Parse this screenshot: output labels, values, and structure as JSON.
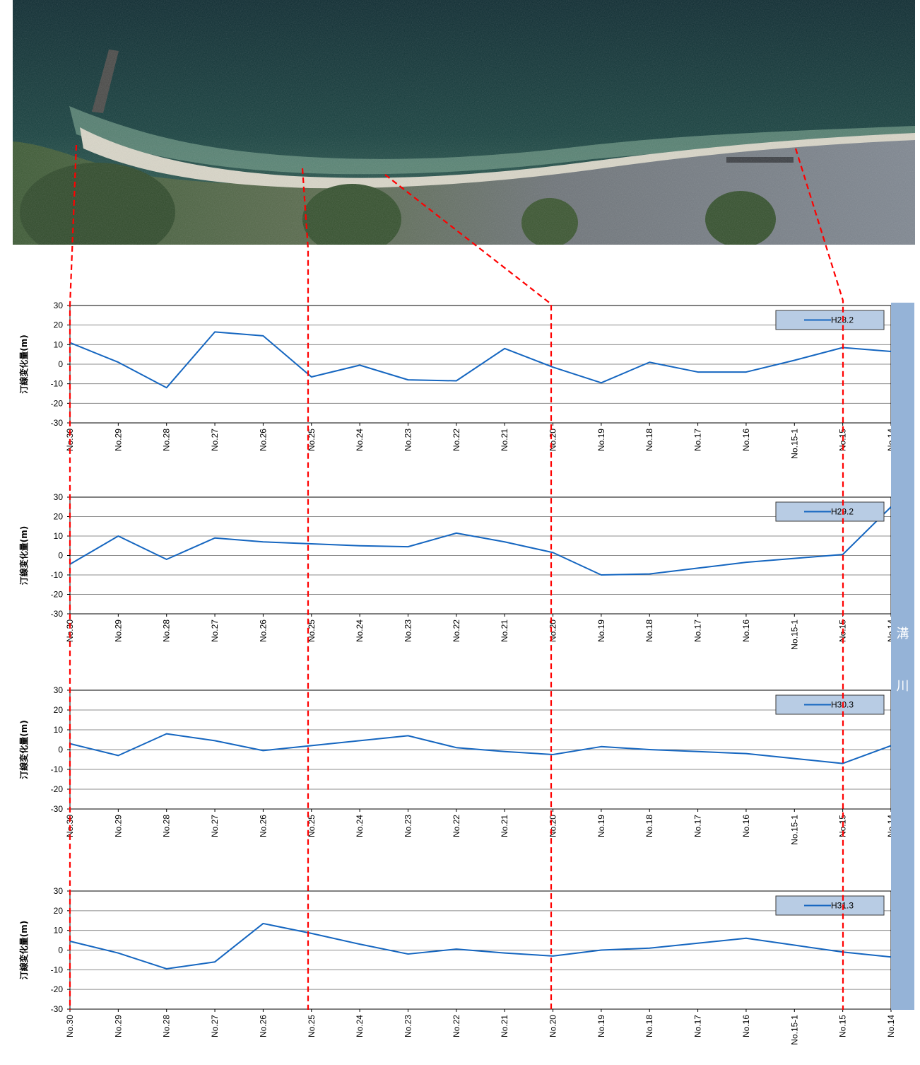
{
  "colors": {
    "series": "#1566c0",
    "grid": "#8c8c8c",
    "axis": "#000000",
    "guide": "#ff0000",
    "river_band": "#95b3d7",
    "legend_fill": "#b8cce4",
    "legend_border": "#3a3a3a"
  },
  "river_label": [
    "溝",
    "川"
  ],
  "chart_data": [
    {
      "type": "line",
      "ylabel": "汀線変化量(m)",
      "ylim": [
        -30,
        30
      ],
      "yticks": [
        30,
        20,
        10,
        0,
        -10,
        -20,
        -30
      ],
      "grid": true,
      "legend_position": "top-right",
      "categories": [
        "No.30",
        "No.29",
        "No.28",
        "No.27",
        "No.26",
        "No.25",
        "No.24",
        "No.23",
        "No.22",
        "No.21",
        "No.20",
        "No.19",
        "No.18",
        "No.17",
        "No.16",
        "No.15-1",
        "No.15",
        "No.14"
      ],
      "series": [
        {
          "name": "H28.2",
          "values": [
            11,
            1,
            -12,
            16.5,
            14.5,
            -6.5,
            -0.5,
            -8,
            -8.5,
            8,
            -1.5,
            -9.5,
            1,
            -4,
            -4,
            2,
            8.5,
            6.5
          ]
        }
      ]
    },
    {
      "type": "line",
      "ylabel": "汀線変化量(m)",
      "ylim": [
        -30,
        30
      ],
      "yticks": [
        30,
        20,
        10,
        0,
        -10,
        -20,
        -30
      ],
      "grid": true,
      "legend_position": "top-right",
      "categories": [
        "No.30",
        "No.29",
        "No.28",
        "No.27",
        "No.26",
        "No.25",
        "No.24",
        "No.23",
        "No.22",
        "No.21",
        "No.20",
        "No.19",
        "No.18",
        "No.17",
        "No.16",
        "No.15-1",
        "No.15",
        "No.14"
      ],
      "series": [
        {
          "name": "H29.2",
          "values": [
            -4.5,
            10,
            -2,
            9,
            7,
            6,
            5,
            4.5,
            11.5,
            7,
            1.5,
            -10,
            -9.5,
            -6.5,
            -3.5,
            -1.5,
            0.5,
            25
          ]
        }
      ]
    },
    {
      "type": "line",
      "ylabel": "汀線変化量(m)",
      "ylim": [
        -30,
        30
      ],
      "yticks": [
        30,
        20,
        10,
        0,
        -10,
        -20,
        -30
      ],
      "grid": true,
      "legend_position": "top-right",
      "categories": [
        "No.30",
        "No.29",
        "No.28",
        "No.27",
        "No.26",
        "No.25",
        "No.24",
        "No.23",
        "No.22",
        "No.21",
        "No.20",
        "No.19",
        "No.18",
        "No.17",
        "No.16",
        "No.15-1",
        "No.15",
        "No.14"
      ],
      "series": [
        {
          "name": "H30.3",
          "values": [
            3,
            -3,
            8,
            4.5,
            -0.5,
            2,
            4.5,
            7,
            1,
            -1,
            -2.5,
            1.5,
            0,
            -1,
            -2,
            -4.5,
            -7,
            2
          ]
        }
      ]
    },
    {
      "type": "line",
      "ylabel": "汀線変化量(m)",
      "ylim": [
        -30,
        30
      ],
      "yticks": [
        30,
        20,
        10,
        0,
        -10,
        -20,
        -30
      ],
      "grid": true,
      "legend_position": "top-right",
      "categories": [
        "No.30",
        "No.29",
        "No.28",
        "No.27",
        "No.26",
        "No.25",
        "No.24",
        "No.23",
        "No.22",
        "No.21",
        "No.20",
        "No.19",
        "No.18",
        "No.17",
        "No.16",
        "No.15-1",
        "No.15",
        "No.14"
      ],
      "series": [
        {
          "name": "H31.3",
          "values": [
            4.5,
            -1.5,
            -9.5,
            -6,
            13.5,
            8.5,
            3,
            -2,
            0.5,
            -1.5,
            -3,
            0,
            1,
            3.5,
            6,
            2.5,
            -1,
            -3.5
          ]
        }
      ]
    }
  ]
}
